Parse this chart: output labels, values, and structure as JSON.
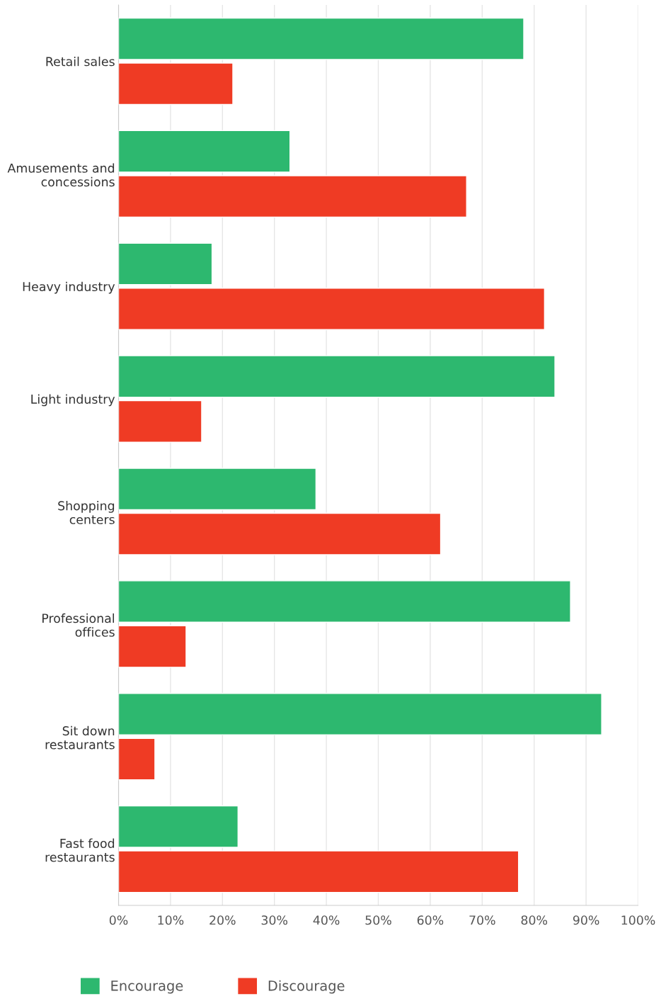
{
  "chart_data": {
    "type": "bar",
    "orientation": "horizontal",
    "categories": [
      "Retail sales",
      "Amusements and\nconcessions",
      "Heavy industry",
      "Light industry",
      "Shopping\ncenters",
      "Professional\noffices",
      "Sit down\nrestaurants",
      "Fast food\nrestaurants"
    ],
    "series": [
      {
        "name": "Encourage",
        "color": "#2db86f",
        "values": [
          78,
          33,
          18,
          84,
          38,
          87,
          93,
          23
        ]
      },
      {
        "name": "Discourage",
        "color": "#ef3b24",
        "values": [
          22,
          67,
          82,
          16,
          62,
          13,
          7,
          77
        ]
      }
    ],
    "xlim": [
      0,
      100
    ],
    "xticks": [
      {
        "value": 0,
        "label": "0%"
      },
      {
        "value": 10,
        "label": "10%"
      },
      {
        "value": 20,
        "label": "20%"
      },
      {
        "value": 30,
        "label": "30%"
      },
      {
        "value": 40,
        "label": "40%"
      },
      {
        "value": 50,
        "label": "50%"
      },
      {
        "value": 60,
        "label": "60%"
      },
      {
        "value": 70,
        "label": "70%"
      },
      {
        "value": 80,
        "label": "80%"
      },
      {
        "value": 90,
        "label": "90%"
      },
      {
        "value": 100,
        "label": "100%"
      }
    ],
    "grid": "x",
    "legend": "bottom"
  }
}
